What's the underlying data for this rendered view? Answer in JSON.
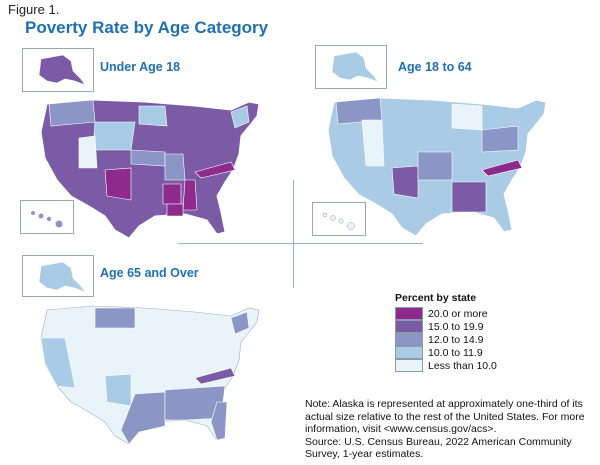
{
  "figure_label": "Figure 1.",
  "title": "Poverty Rate by Age Category",
  "maps": [
    {
      "title": "Under Age 18"
    },
    {
      "title": "Age 18 to 64"
    },
    {
      "title": "Age 65 and Over"
    }
  ],
  "legend": {
    "title": "Percent by state",
    "items": [
      {
        "label": "20.0 or more",
        "color": "#8e2a8b"
      },
      {
        "label": "15.0 to 19.9",
        "color": "#7b5aa6"
      },
      {
        "label": "12.0 to 14.9",
        "color": "#8c96c6"
      },
      {
        "label": "10.0 to 11.9",
        "color": "#a9cbe6"
      },
      {
        "label": "Less than 10.0",
        "color": "#e8f3fa"
      }
    ]
  },
  "note": {
    "text": "Note: Alaska is represented at approximately one-third of its actual size relative to the rest of the United States. For more information, visit <www.census.gov/acs>.",
    "source": "Source: U.S. Census Bureau, 2022 American Community Survey, 1-year estimates."
  }
}
